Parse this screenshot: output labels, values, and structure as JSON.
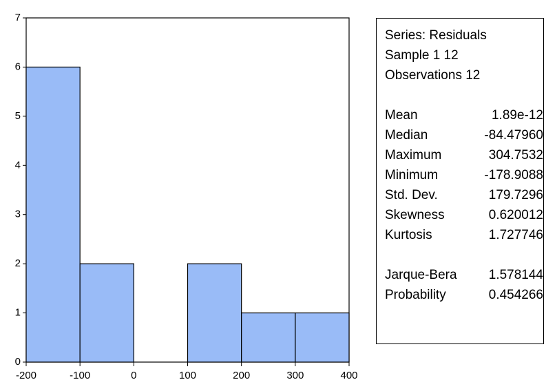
{
  "chart_data": {
    "type": "bar",
    "bins": [
      {
        "from": -200,
        "to": -100,
        "count": 6
      },
      {
        "from": -100,
        "to": 0,
        "count": 2
      },
      {
        "from": 0,
        "to": 100,
        "count": 0
      },
      {
        "from": 100,
        "to": 200,
        "count": 2
      },
      {
        "from": 200,
        "to": 300,
        "count": 1
      },
      {
        "from": 300,
        "to": 400,
        "count": 1
      }
    ],
    "xlim": [
      -200,
      400
    ],
    "ylim": [
      0,
      7
    ],
    "xticks": [
      "-200",
      "-100",
      "0",
      "100",
      "200",
      "300",
      "400"
    ],
    "yticks": [
      "0",
      "1",
      "2",
      "3",
      "4",
      "5",
      "6",
      "7"
    ],
    "bar_color": "#99bbf7",
    "grid": false
  },
  "stats": {
    "header": [
      "Series: Residuals",
      "Sample 1 12",
      "Observations 12"
    ],
    "group1": [
      {
        "label": "Mean",
        "value": "1.89e-12"
      },
      {
        "label": "Median",
        "value": "-84.47960"
      },
      {
        "label": "Maximum",
        "value": "304.7532"
      },
      {
        "label": "Minimum",
        "value": "-178.9088"
      },
      {
        "label": "Std. Dev.",
        "value": "179.7296"
      },
      {
        "label": "Skewness",
        "value": "0.620012"
      },
      {
        "label": "Kurtosis",
        "value": "1.727746"
      }
    ],
    "group2": [
      {
        "label": "Jarque-Bera",
        "value": "1.578144"
      },
      {
        "label": "Probability",
        "value": "0.454266"
      }
    ]
  }
}
